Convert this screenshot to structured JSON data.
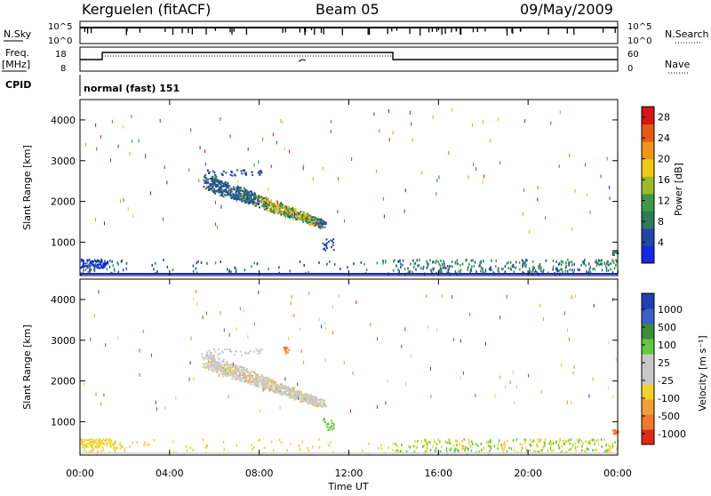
{
  "header": {
    "station": "Kerguelen (fitACF)",
    "beam": "Beam 05",
    "date": "09/May/2009"
  },
  "strips": {
    "nsky_label": "N.Sky",
    "nsearch_label": "N.Search",
    "nsky_ticks": [
      "10^5",
      "10^0"
    ],
    "nsearch_ticks": [
      "10^5",
      "10^0"
    ],
    "freq_label_top": "Freq.",
    "freq_label_bottom": "[MHz]",
    "freq_ticks": [
      "18",
      "8"
    ],
    "nave_label": "Nave",
    "nave_ticks": [
      "60",
      "0"
    ],
    "cpid_label": "CPID",
    "cpid_value": "normal (fast) 151"
  },
  "colors": {
    "power_scale": [
      "#1428e6",
      "#2346a6",
      "#2e7a5a",
      "#3c9a46",
      "#9cbb28",
      "#f0c816",
      "#f09616",
      "#e85a12",
      "#d81414"
    ],
    "velocity_scale": [
      "#1f3fb4",
      "#3c5ec6",
      "#3c8c3c",
      "#64c83c",
      "#c8c8c8",
      "#c8c8c8",
      "#f0d228",
      "#f0a032",
      "#f07828",
      "#e02814"
    ]
  },
  "chart_data": [
    {
      "type": "heatmap",
      "name": "power",
      "xlabel": "Time UT",
      "ylabel": "Slant Range [km]",
      "x_ticks": [
        "00:00",
        "04:00",
        "08:00",
        "12:00",
        "16:00",
        "20:00",
        "00:00"
      ],
      "x_range_hours": [
        0,
        24
      ],
      "ylim": [
        180,
        4500
      ],
      "y_ticks": [
        "1000",
        "2000",
        "3000",
        "4000"
      ],
      "colorbar_label": "Power [dB]",
      "colorbar_ticks": [
        "4",
        "8",
        "12",
        "16",
        "20",
        "24",
        "28"
      ],
      "colorbar_range": [
        0,
        30
      ]
    },
    {
      "type": "heatmap",
      "name": "velocity",
      "xlabel": "Time UT",
      "ylabel": "Slant Range [km]",
      "x_ticks": [
        "00:00",
        "04:00",
        "08:00",
        "12:00",
        "16:00",
        "20:00",
        "00:00"
      ],
      "x_range_hours": [
        0,
        24
      ],
      "ylim": [
        180,
        4500
      ],
      "y_ticks": [
        "1000",
        "2000",
        "3000",
        "4000"
      ],
      "colorbar_label": "Velocity [m s⁻¹]",
      "colorbar_ticks": [
        "1000",
        "500",
        "100",
        "25",
        "-25",
        "-100",
        "-500",
        "-1000"
      ]
    }
  ]
}
